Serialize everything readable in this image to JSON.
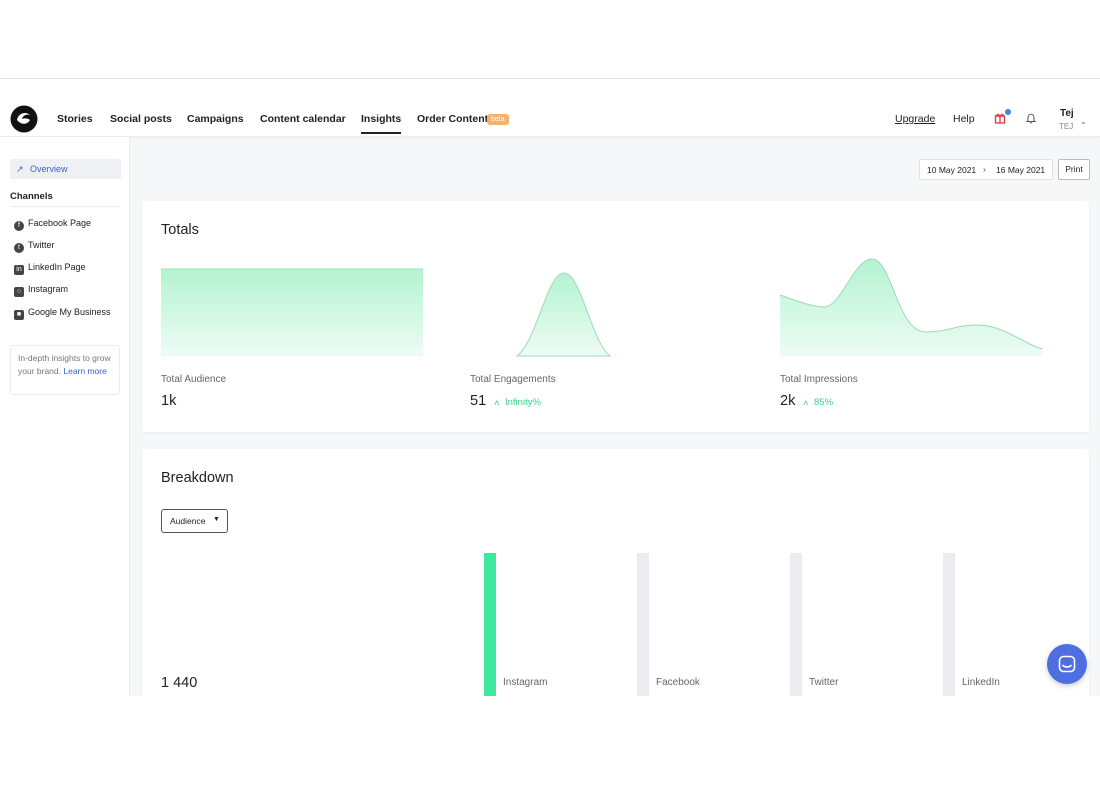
{
  "nav": {
    "items": [
      {
        "label": "Stories",
        "active": false
      },
      {
        "label": "Social posts",
        "active": false
      },
      {
        "label": "Campaigns",
        "active": false
      },
      {
        "label": "Content calendar",
        "active": false
      },
      {
        "label": "Insights",
        "active": true
      },
      {
        "label": "Order Content",
        "active": false
      }
    ],
    "beta_badge": "beta",
    "upgrade": "Upgrade",
    "help": "Help",
    "user_name": "Tej",
    "user_sub": "TEJ"
  },
  "sidebar": {
    "overview": "Overview",
    "channels_heading": "Channels",
    "channels": [
      {
        "label": "Facebook Page",
        "icon": "facebook-icon"
      },
      {
        "label": "Twitter",
        "icon": "twitter-icon"
      },
      {
        "label": "LinkedIn Page",
        "icon": "linkedin-icon"
      },
      {
        "label": "Instagram",
        "icon": "instagram-icon"
      },
      {
        "label": "Google My Business",
        "icon": "google-my-business-icon"
      }
    ],
    "promo_text": "In-depth insights to grow your brand.",
    "promo_link": "Learn more"
  },
  "toolbar": {
    "date_from": "10 May 2021",
    "date_to": "16 May 2021",
    "print": "Print"
  },
  "totals": {
    "title": "Totals",
    "metrics": [
      {
        "label": "Total Audience",
        "value": "1k",
        "delta": ""
      },
      {
        "label": "Total Engagements",
        "value": "51",
        "delta": "Infinity%"
      },
      {
        "label": "Total Impressions",
        "value": "2k",
        "delta": "85%"
      }
    ]
  },
  "breakdown": {
    "title": "Breakdown",
    "dropdown": "Audience",
    "total": "1 440",
    "channels": [
      {
        "label": "Instagram",
        "share": 1.0
      },
      {
        "label": "Facebook",
        "share": 0.0
      },
      {
        "label": "Twitter",
        "share": 0.0
      },
      {
        "label": "LinkedIn",
        "share": 0.0
      }
    ]
  },
  "colors": {
    "accent_green": "#3ee89c",
    "link_blue": "#3b64c6",
    "chat_blue": "#4f6fe0",
    "beta_orange": "#f6b26b"
  }
}
